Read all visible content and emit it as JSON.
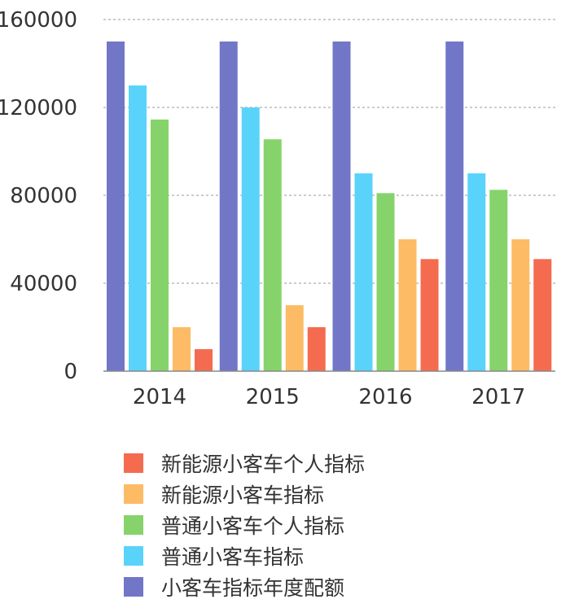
{
  "chart_data": {
    "type": "bar",
    "categories": [
      "2014",
      "2015",
      "2016",
      "2017"
    ],
    "series": [
      {
        "name": "小客车指标年度配额",
        "color": "#7276c7",
        "values": [
          150000,
          150000,
          150000,
          150000
        ]
      },
      {
        "name": "普通小客车指标",
        "color": "#5ad3fa",
        "values": [
          130000,
          120000,
          90000,
          90000
        ]
      },
      {
        "name": "普通小客车个人指标",
        "color": "#86d36b",
        "values": [
          114500,
          105500,
          81000,
          82500
        ]
      },
      {
        "name": "新能源小客车指标",
        "color": "#fdbb66",
        "values": [
          20000,
          30000,
          60000,
          60000
        ]
      },
      {
        "name": "新能源小客车个人指标",
        "color": "#f56b4f",
        "values": [
          10000,
          20000,
          51000,
          51000
        ]
      }
    ],
    "yticks": [
      "0",
      "40000",
      "80000",
      "120000",
      "160000"
    ],
    "ylim": [
      0,
      160000
    ],
    "grid": true,
    "legend_position": "bottom",
    "legend_order": [
      "新能源小客车个人指标",
      "新能源小客车指标",
      "普通小客车个人指标",
      "普通小客车指标",
      "小客车指标年度配额"
    ]
  }
}
